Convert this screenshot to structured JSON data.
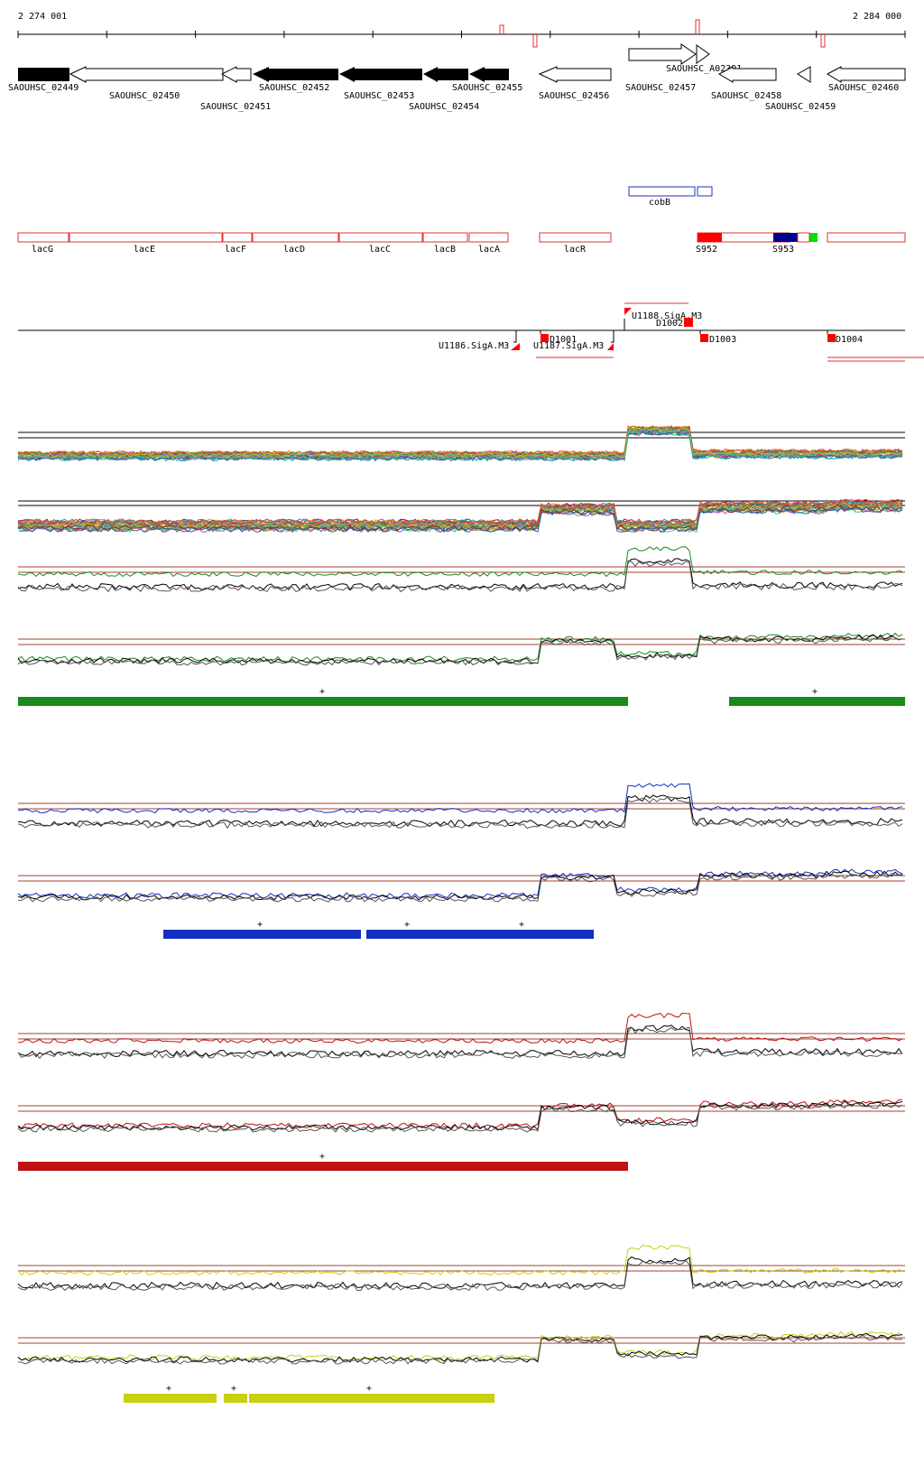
{
  "coordinates": {
    "start": "2 274 001",
    "end": "2 284 000"
  },
  "colors": {
    "gene_fill": "#000000",
    "operon_outline": "#e03030",
    "cobB_outline": "#2030c0",
    "S952_fill": "#ff0000",
    "S953_fill": "#000090",
    "S953_tail": "#00e000",
    "promoter": "#ff0000",
    "tiling_ref": "#a04030",
    "green": "#1a8a1a",
    "blue": "#1030c0",
    "red": "#c01010",
    "yellow": "#c8d010"
  },
  "genes": [
    {
      "id": "SAOUHSC_02449",
      "strand": "-",
      "filled": true
    },
    {
      "id": "SAOUHSC_02450",
      "strand": "-",
      "filled": false
    },
    {
      "id": "SAOUHSC_02451",
      "strand": "-",
      "filled": false
    },
    {
      "id": "SAOUHSC_02452",
      "strand": "-",
      "filled": true
    },
    {
      "id": "SAOUHSC_02453",
      "strand": "-",
      "filled": true
    },
    {
      "id": "SAOUHSC_02454",
      "strand": "-",
      "filled": true
    },
    {
      "id": "SAOUHSC_02455",
      "strand": "-",
      "filled": true
    },
    {
      "id": "SAOUHSC_02456",
      "strand": "-",
      "filled": false
    },
    {
      "id": "SAOUHSC_02457",
      "strand": "+",
      "filled": false
    },
    {
      "id": "SAOUHSC_A02391",
      "strand": "+",
      "filled": false
    },
    {
      "id": "SAOUHSC_02458",
      "strand": "-",
      "filled": false
    },
    {
      "id": "SAOUHSC_02459",
      "strand": "-",
      "filled": false
    },
    {
      "id": "SAOUHSC_02460",
      "strand": "-",
      "filled": false
    }
  ],
  "annotations": [
    {
      "label": "cobB"
    },
    {
      "label": "lacG"
    },
    {
      "label": "lacE"
    },
    {
      "label": "lacF"
    },
    {
      "label": "lacD"
    },
    {
      "label": "lacC"
    },
    {
      "label": "lacB"
    },
    {
      "label": "lacA"
    },
    {
      "label": "lacR"
    },
    {
      "label": "S952"
    },
    {
      "label": "S953"
    }
  ],
  "promoters": [
    {
      "label": "U1186.SigA.M3"
    },
    {
      "label": "D1001"
    },
    {
      "label": "U1187.SigA.M3"
    },
    {
      "label": "U1188.SigA.M3"
    },
    {
      "label": "D1002"
    },
    {
      "label": "D1003"
    },
    {
      "label": "D1004"
    }
  ],
  "segment_marks": {
    "green": [
      "+",
      "+"
    ],
    "blue": [
      "+",
      "+",
      "+"
    ],
    "red": [
      "+"
    ],
    "yellow": [
      "+",
      "+",
      "+"
    ]
  }
}
